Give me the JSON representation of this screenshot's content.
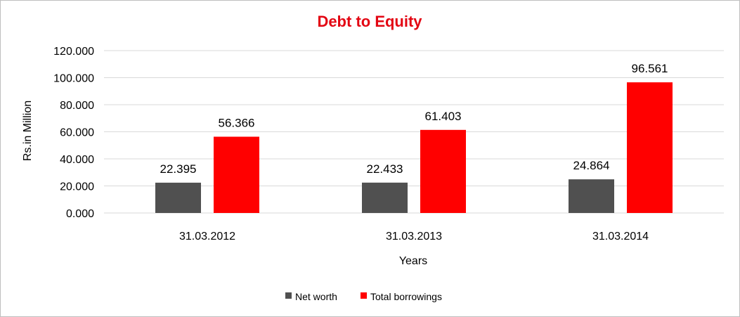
{
  "chart_data": {
    "type": "bar",
    "title": "Debt to Equity",
    "title_color": "#e30613",
    "xlabel": "Years",
    "ylabel": "Rs.in Million",
    "categories": [
      "31.03.2012",
      "31.03.2013",
      "31.03.2014"
    ],
    "series": [
      {
        "name": "Net worth",
        "color": "#505050",
        "values": [
          22.395,
          22.433,
          24.864
        ],
        "labels": [
          "22.395",
          "22.433",
          "24.864"
        ]
      },
      {
        "name": "Total borrowings",
        "color": "#ff0000",
        "values": [
          56.366,
          61.403,
          96.561
        ],
        "labels": [
          "56.366",
          "61.403",
          "96.561"
        ]
      }
    ],
    "ylim": [
      0,
      120
    ],
    "yticks": [
      "0.000",
      "20.000",
      "40.000",
      "60.000",
      "80.000",
      "100.000",
      "120.000"
    ],
    "grid": true,
    "gridline_color": "#d9d9d9",
    "legend_position": "bottom"
  }
}
